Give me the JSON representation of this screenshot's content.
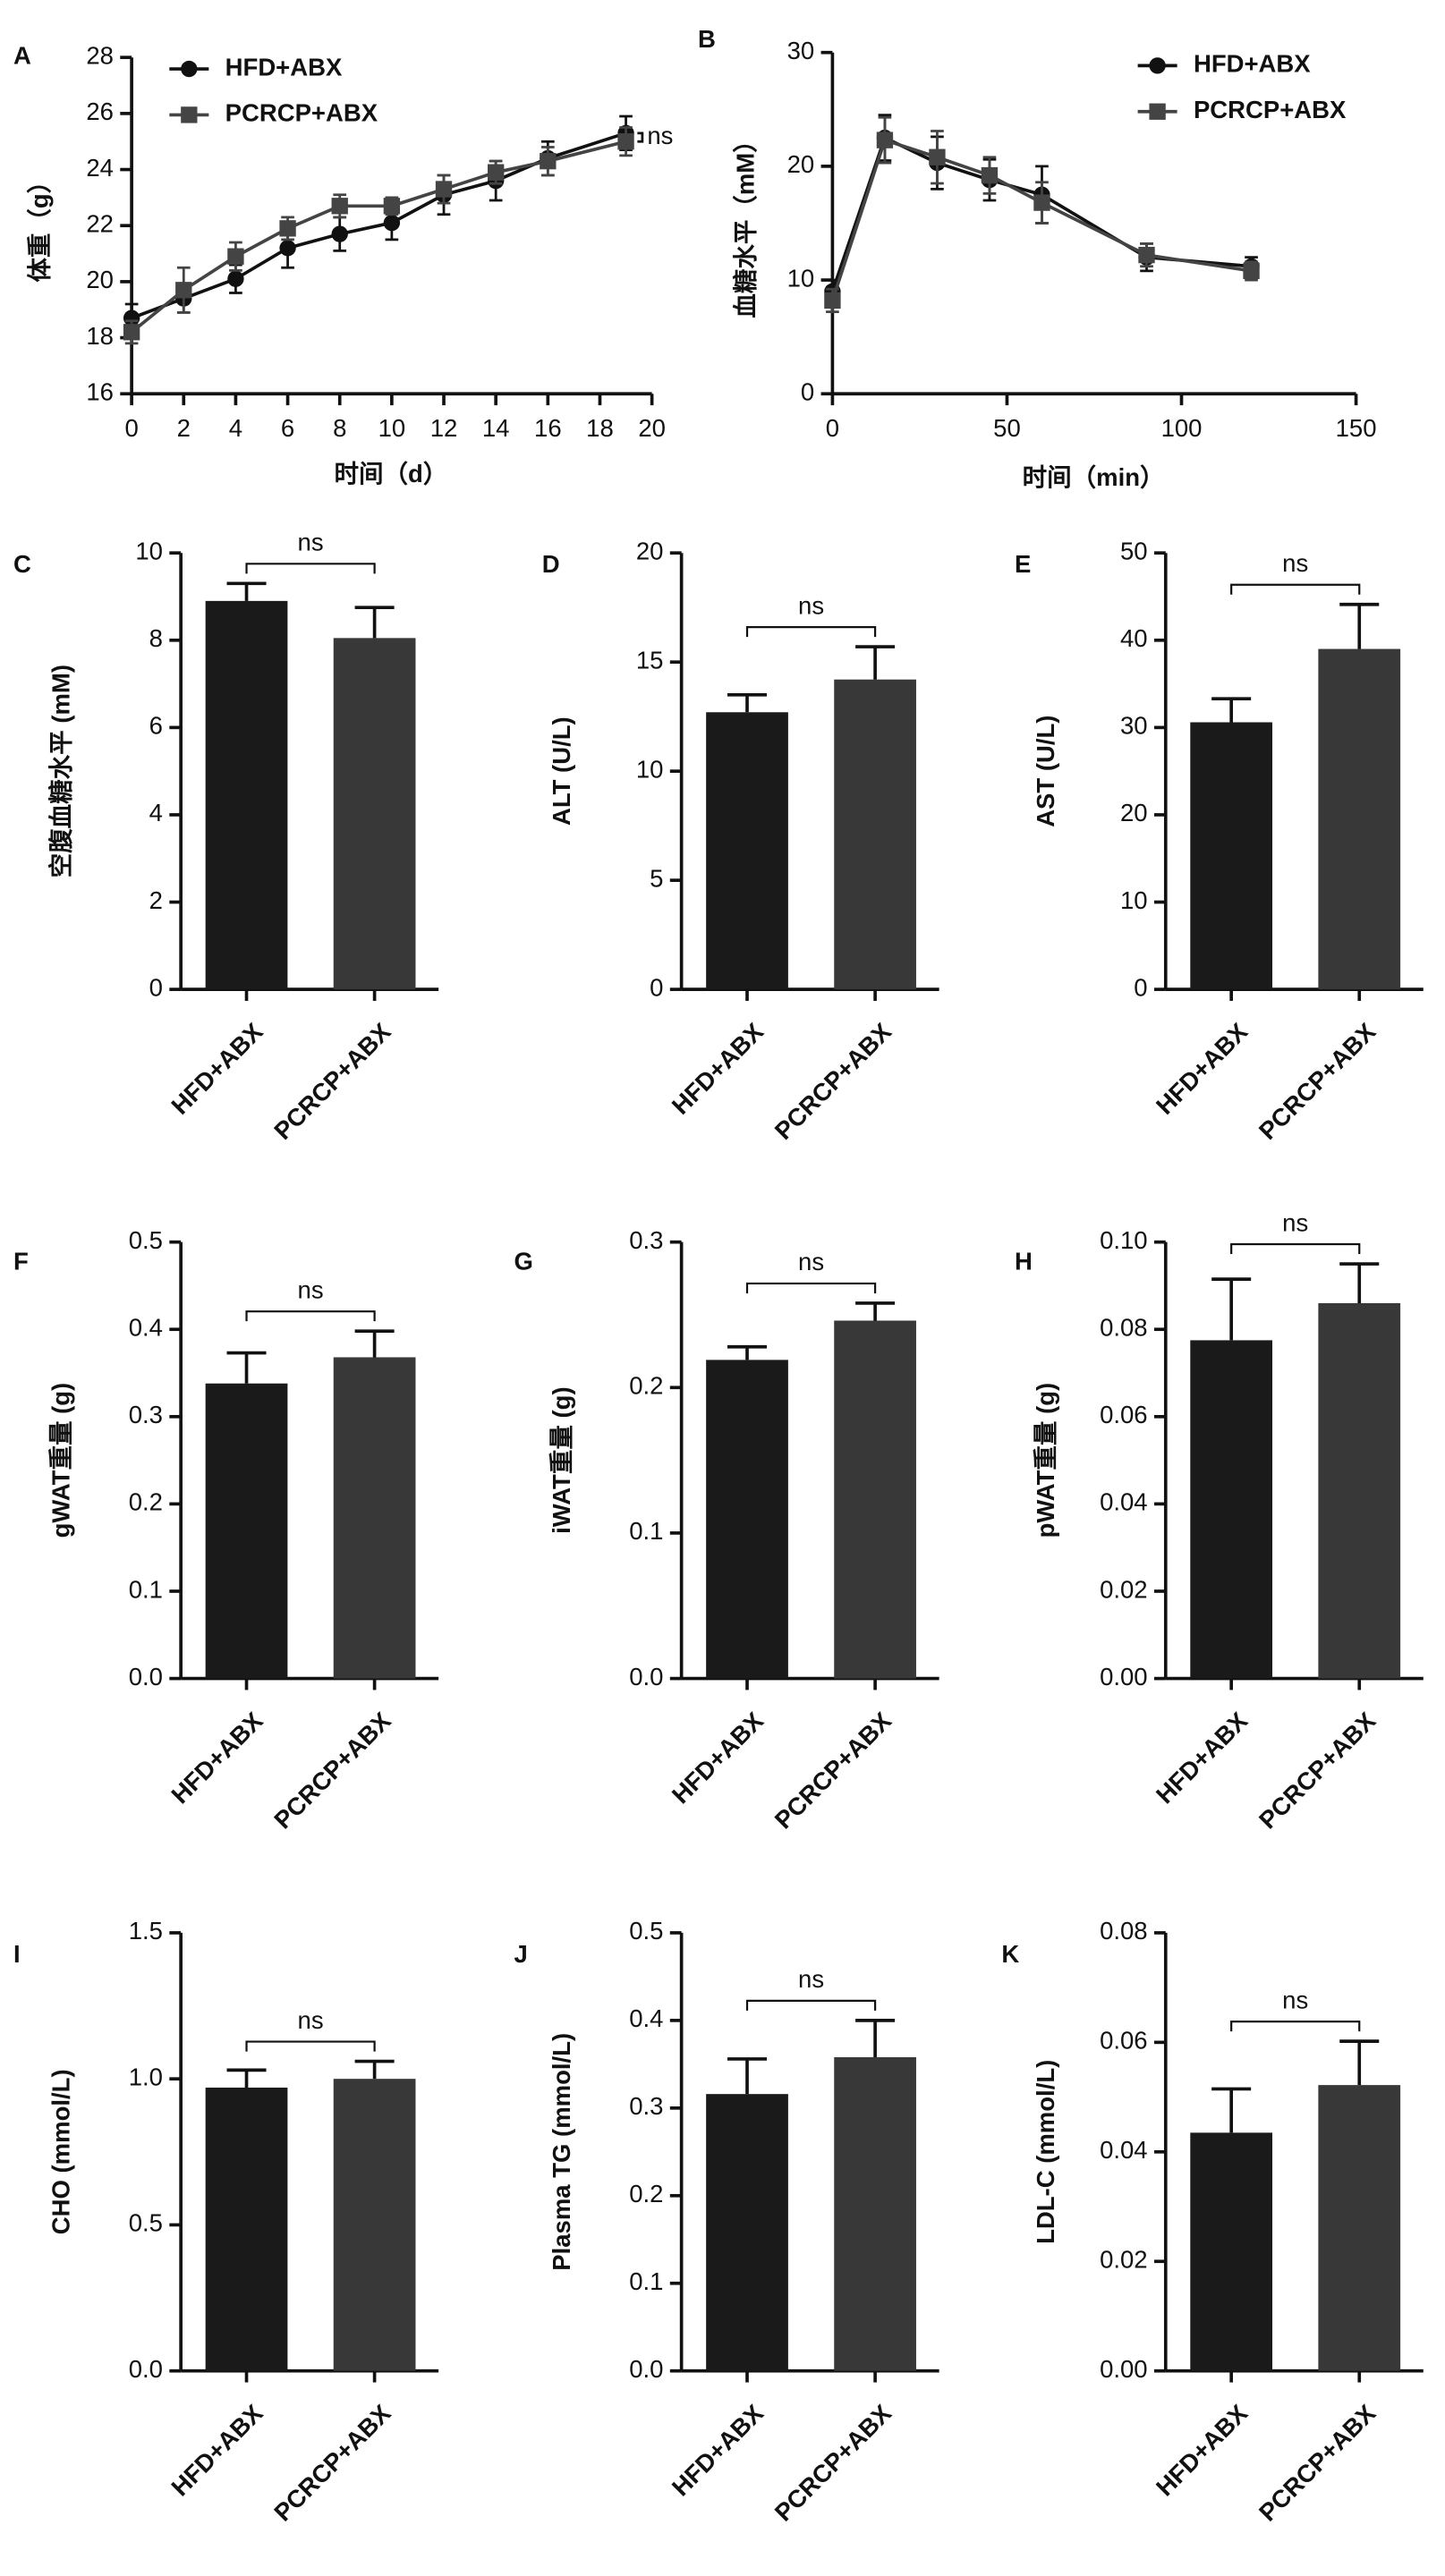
{
  "chart_data": [
    {
      "panel": "A",
      "type": "line",
      "ylabel": "体重（g）",
      "xlabel": "时间（d）",
      "x": [
        0,
        2,
        4,
        6,
        8,
        10,
        12,
        14,
        16,
        19
      ],
      "series": [
        {
          "name": "HFD+ABX",
          "color": "#111111",
          "marker": "circle",
          "values": [
            18.7,
            19.4,
            20.1,
            21.2,
            21.7,
            22.1,
            23.1,
            23.6,
            24.4,
            25.3
          ],
          "errors": [
            0.5,
            0.5,
            0.5,
            0.7,
            0.6,
            0.6,
            0.7,
            0.7,
            0.6,
            0.6
          ]
        },
        {
          "name": "PCRCP+ABX",
          "color": "#444444",
          "marker": "square",
          "values": [
            18.2,
            19.7,
            20.9,
            21.9,
            22.7,
            22.7,
            23.3,
            23.9,
            24.3,
            25.0
          ],
          "errors": [
            0.4,
            0.8,
            0.5,
            0.4,
            0.4,
            0.3,
            0.5,
            0.4,
            0.5,
            0.5
          ]
        }
      ],
      "xlim": [
        0,
        20
      ],
      "xticks": [
        0,
        2,
        4,
        6,
        8,
        10,
        12,
        14,
        16,
        18,
        20
      ],
      "ylim": [
        16,
        28
      ],
      "yticks": [
        16,
        18,
        20,
        22,
        24,
        26,
        28
      ],
      "annotation": "ns"
    },
    {
      "panel": "B",
      "type": "line",
      "ylabel": "血糖水平（mM）",
      "xlabel": "时间（min）",
      "x": [
        0,
        15,
        30,
        45,
        60,
        90,
        120
      ],
      "series": [
        {
          "name": "HFD+ABX",
          "color": "#111111",
          "marker": "circle",
          "values": [
            9.0,
            22.5,
            20.3,
            18.8,
            17.5,
            12.0,
            11.2
          ],
          "errors": [
            1.0,
            2.0,
            2.3,
            1.8,
            2.5,
            1.2,
            0.8
          ]
        },
        {
          "name": "PCRCP+ABX",
          "color": "#444444",
          "marker": "square",
          "values": [
            8.2,
            22.3,
            20.8,
            19.2,
            16.8,
            12.2,
            10.8
          ],
          "errors": [
            1.0,
            2.0,
            2.3,
            1.6,
            1.8,
            1.0,
            0.8
          ]
        }
      ],
      "xlim": [
        0,
        150
      ],
      "xticks": [
        0,
        50,
        100,
        150
      ],
      "ylim": [
        0,
        30
      ],
      "yticks": [
        0,
        10,
        20,
        30
      ]
    },
    {
      "panel": "C",
      "type": "bar",
      "ylabel": "空腹血糖水平 (mM)",
      "categories": [
        "HFD+ABX",
        "PCRCP+ABX"
      ],
      "values": [
        8.9,
        8.05
      ],
      "errors": [
        0.4,
        0.7
      ],
      "colors": [
        "#1a1a1a",
        "#383838"
      ],
      "ylim": [
        0,
        10
      ],
      "yticks": [
        0,
        2,
        4,
        6,
        8,
        10
      ],
      "annotation": "ns"
    },
    {
      "panel": "D",
      "type": "bar",
      "ylabel": "ALT (U/L)",
      "categories": [
        "HFD+ABX",
        "PCRCP+ABX"
      ],
      "values": [
        12.7,
        14.2
      ],
      "errors": [
        0.8,
        1.5
      ],
      "colors": [
        "#1a1a1a",
        "#383838"
      ],
      "ylim": [
        0,
        20
      ],
      "yticks": [
        0,
        5,
        10,
        15,
        20
      ],
      "annotation": "ns"
    },
    {
      "panel": "E",
      "type": "bar",
      "ylabel": "AST (U/L)",
      "categories": [
        "HFD+ABX",
        "PCRCP+ABX"
      ],
      "values": [
        30.6,
        39.0
      ],
      "errors": [
        2.7,
        5.1
      ],
      "colors": [
        "#1a1a1a",
        "#383838"
      ],
      "ylim": [
        0,
        50
      ],
      "yticks": [
        0,
        10,
        20,
        30,
        40,
        50
      ],
      "annotation": "ns"
    },
    {
      "panel": "F",
      "type": "bar",
      "ylabel": "gWAT重量 (g)",
      "categories": [
        "HFD+ABX",
        "PCRCP+ABX"
      ],
      "values": [
        0.338,
        0.368
      ],
      "errors": [
        0.035,
        0.03
      ],
      "colors": [
        "#1a1a1a",
        "#383838"
      ],
      "ylim": [
        0,
        0.5
      ],
      "yticks": [
        {
          "value": 0,
          "label": "0.0"
        },
        0.1,
        0.2,
        0.3,
        0.4,
        0.5
      ],
      "annotation": "ns"
    },
    {
      "panel": "G",
      "type": "bar",
      "ylabel": "iWAT重量 (g)",
      "categories": [
        "HFD+ABX",
        "PCRCP+ABX"
      ],
      "values": [
        0.219,
        0.246
      ],
      "errors": [
        0.009,
        0.012
      ],
      "colors": [
        "#1a1a1a",
        "#383838"
      ],
      "ylim": [
        0,
        0.3
      ],
      "yticks": [
        {
          "value": 0,
          "label": "0.0"
        },
        0.1,
        0.2,
        0.3
      ],
      "annotation": "ns"
    },
    {
      "panel": "H",
      "type": "bar",
      "ylabel": "pWAT重量 (g)",
      "categories": [
        "HFD+ABX",
        "PCRCP+ABX"
      ],
      "values": [
        0.0775,
        0.086
      ],
      "errors": [
        0.014,
        0.009
      ],
      "colors": [
        "#1a1a1a",
        "#383838"
      ],
      "ylim": [
        0,
        0.1
      ],
      "yticks": [
        {
          "value": 0,
          "label": "0.00"
        },
        0.02,
        0.04,
        0.06,
        0.08,
        {
          "value": 0.1,
          "label": "0.10"
        }
      ],
      "annotation": "ns"
    },
    {
      "panel": "I",
      "type": "bar",
      "ylabel": "CHO (mmol/L)",
      "categories": [
        "HFD+ABX",
        "PCRCP+ABX"
      ],
      "values": [
        0.97,
        1.0
      ],
      "errors": [
        0.06,
        0.06
      ],
      "colors": [
        "#1a1a1a",
        "#383838"
      ],
      "ylim": [
        0,
        1.5
      ],
      "yticks": [
        {
          "value": 0,
          "label": "0.0"
        },
        0.5,
        {
          "value": 1,
          "label": "1.0"
        },
        1.5
      ],
      "annotation": "ns"
    },
    {
      "panel": "J",
      "type": "bar",
      "ylabel": "Plasma TG (mmol/L)",
      "categories": [
        "HFD+ABX",
        "PCRCP+ABX"
      ],
      "values": [
        0.316,
        0.358
      ],
      "errors": [
        0.04,
        0.042
      ],
      "colors": [
        "#1a1a1a",
        "#383838"
      ],
      "ylim": [
        0,
        0.5
      ],
      "yticks": [
        {
          "value": 0,
          "label": "0.0"
        },
        0.1,
        0.2,
        0.3,
        0.4,
        0.5
      ],
      "annotation": "ns"
    },
    {
      "panel": "K",
      "type": "bar",
      "ylabel": "LDL-C (mmol/L)",
      "categories": [
        "HFD+ABX",
        "PCRCP+ABX"
      ],
      "values": [
        0.0435,
        0.0522
      ],
      "errors": [
        0.008,
        0.008
      ],
      "colors": [
        "#1a1a1a",
        "#383838"
      ],
      "ylim": [
        0,
        0.08
      ],
      "yticks": [
        {
          "value": 0,
          "label": "0.00"
        },
        0.02,
        0.04,
        0.06,
        0.08
      ],
      "annotation": "ns"
    }
  ]
}
